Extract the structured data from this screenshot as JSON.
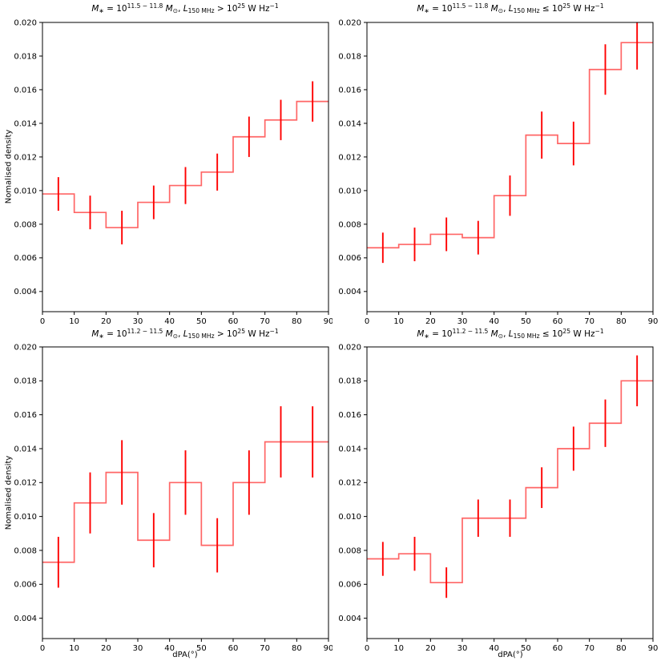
{
  "figure": {
    "background": "#ffffff",
    "step_color": "#ff6666",
    "errorbar_color": "#ff0000",
    "spine_color": "#000000",
    "tick_label_color": "#000000"
  },
  "axes_common": {
    "xlabel": "dPA(°)",
    "ylabel": "Nomalised density",
    "xlim": [
      0,
      90
    ],
    "ylim": [
      0.0028,
      0.02
    ],
    "x_ticks": [
      0,
      10,
      20,
      30,
      40,
      50,
      60,
      70,
      80,
      90
    ],
    "y_ticks": [
      0.004,
      0.006,
      0.008,
      0.01,
      0.012,
      0.014,
      0.016,
      0.018,
      0.02
    ],
    "y_tick_labels": [
      "0.004",
      "0.006",
      "0.008",
      "0.010",
      "0.012",
      "0.014",
      "0.016",
      "0.018",
      "0.020"
    ],
    "grid": false,
    "legend": "none"
  },
  "chart_data": [
    {
      "id": "top-left",
      "type": "step-histogram-with-errorbars",
      "title_text": "M∗ = 10^(11.5−11.8) M⊙, L_150MHz > 10^25 W Hz^−1",
      "title_segments": [
        {
          "t": "M",
          "s": "i"
        },
        {
          "t": "∗",
          "s": "sub"
        },
        {
          "t": " = 10",
          "s": ""
        },
        {
          "t": "11.5 − 11.8",
          "s": "sup"
        },
        {
          "t": " ",
          "s": ""
        },
        {
          "t": "M",
          "s": "i"
        },
        {
          "t": "⊙",
          "s": "sub"
        },
        {
          "t": ", ",
          "s": ""
        },
        {
          "t": "L",
          "s": "i"
        },
        {
          "t": "150 MHz",
          "s": "sub"
        },
        {
          "t": " > 10",
          "s": ""
        },
        {
          "t": "25",
          "s": "sup"
        },
        {
          "t": " W Hz",
          "s": ""
        },
        {
          "t": "−1",
          "s": "sup"
        }
      ],
      "bin_edges": [
        0,
        10,
        20,
        30,
        40,
        50,
        60,
        70,
        80,
        90
      ],
      "bin_centers": [
        5,
        15,
        25,
        35,
        45,
        55,
        65,
        75,
        85
      ],
      "values": [
        0.0098,
        0.0087,
        0.0078,
        0.0093,
        0.0103,
        0.0111,
        0.0132,
        0.0142,
        0.0153
      ],
      "errors": [
        0.001,
        0.001,
        0.001,
        0.001,
        0.0011,
        0.0011,
        0.0012,
        0.0012,
        0.0012
      ],
      "show_ylabel": true,
      "show_xlabel": false
    },
    {
      "id": "top-right",
      "type": "step-histogram-with-errorbars",
      "title_text": "M∗ = 10^(11.5−11.8) M⊙, L_150MHz ≤ 10^25 W Hz^−1",
      "title_segments": [
        {
          "t": "M",
          "s": "i"
        },
        {
          "t": "∗",
          "s": "sub"
        },
        {
          "t": " = 10",
          "s": ""
        },
        {
          "t": "11.5 − 11.8",
          "s": "sup"
        },
        {
          "t": " ",
          "s": ""
        },
        {
          "t": "M",
          "s": "i"
        },
        {
          "t": "⊙",
          "s": "sub"
        },
        {
          "t": ", ",
          "s": ""
        },
        {
          "t": "L",
          "s": "i"
        },
        {
          "t": "150 MHz",
          "s": "sub"
        },
        {
          "t": " ≤ 10",
          "s": ""
        },
        {
          "t": "25",
          "s": "sup"
        },
        {
          "t": " W Hz",
          "s": ""
        },
        {
          "t": "−1",
          "s": "sup"
        }
      ],
      "bin_edges": [
        0,
        10,
        20,
        30,
        40,
        50,
        60,
        70,
        80,
        90
      ],
      "bin_centers": [
        5,
        15,
        25,
        35,
        45,
        55,
        65,
        75,
        85
      ],
      "values": [
        0.0066,
        0.0068,
        0.0074,
        0.0072,
        0.0097,
        0.0133,
        0.0128,
        0.0172,
        0.0188
      ],
      "errors": [
        0.0009,
        0.001,
        0.001,
        0.001,
        0.0012,
        0.0014,
        0.0013,
        0.0015,
        0.0016
      ],
      "show_ylabel": false,
      "show_xlabel": false
    },
    {
      "id": "bottom-left",
      "type": "step-histogram-with-errorbars",
      "title_text": "M∗ = 10^(11.2−11.5) M⊙, L_150MHz > 10^25 W Hz^−1",
      "title_segments": [
        {
          "t": "M",
          "s": "i"
        },
        {
          "t": "∗",
          "s": "sub"
        },
        {
          "t": " = 10",
          "s": ""
        },
        {
          "t": "11.2 − 11.5",
          "s": "sup"
        },
        {
          "t": " ",
          "s": ""
        },
        {
          "t": "M",
          "s": "i"
        },
        {
          "t": "⊙",
          "s": "sub"
        },
        {
          "t": ", ",
          "s": ""
        },
        {
          "t": "L",
          "s": "i"
        },
        {
          "t": "150 MHz",
          "s": "sub"
        },
        {
          "t": " > 10",
          "s": ""
        },
        {
          "t": "25",
          "s": "sup"
        },
        {
          "t": " W Hz",
          "s": ""
        },
        {
          "t": "−1",
          "s": "sup"
        }
      ],
      "bin_edges": [
        0,
        10,
        20,
        30,
        40,
        50,
        60,
        70,
        80,
        90
      ],
      "bin_centers": [
        5,
        15,
        25,
        35,
        45,
        55,
        65,
        75,
        85
      ],
      "values": [
        0.0073,
        0.0108,
        0.0126,
        0.0086,
        0.012,
        0.0083,
        0.012,
        0.0144,
        0.0144
      ],
      "errors": [
        0.0015,
        0.0018,
        0.0019,
        0.0016,
        0.0019,
        0.0016,
        0.0019,
        0.0021,
        0.0021
      ],
      "show_ylabel": true,
      "show_xlabel": true
    },
    {
      "id": "bottom-right",
      "type": "step-histogram-with-errorbars",
      "title_text": "M∗ = 10^(11.2−11.5) M⊙, L_150MHz ≤ 10^25 W Hz^−1",
      "title_segments": [
        {
          "t": "M",
          "s": "i"
        },
        {
          "t": "∗",
          "s": "sub"
        },
        {
          "t": " = 10",
          "s": ""
        },
        {
          "t": "11.2 − 11.5",
          "s": "sup"
        },
        {
          "t": " ",
          "s": ""
        },
        {
          "t": "M",
          "s": "i"
        },
        {
          "t": "⊙",
          "s": "sub"
        },
        {
          "t": ", ",
          "s": ""
        },
        {
          "t": "L",
          "s": "i"
        },
        {
          "t": "150 MHz",
          "s": "sub"
        },
        {
          "t": " ≤ 10",
          "s": ""
        },
        {
          "t": "25",
          "s": "sup"
        },
        {
          "t": " W Hz",
          "s": ""
        },
        {
          "t": "−1",
          "s": "sup"
        }
      ],
      "bin_edges": [
        0,
        10,
        20,
        30,
        40,
        50,
        60,
        70,
        80,
        90
      ],
      "bin_centers": [
        5,
        15,
        25,
        35,
        45,
        55,
        65,
        75,
        85
      ],
      "values": [
        0.0075,
        0.0078,
        0.0061,
        0.0099,
        0.0099,
        0.0117,
        0.014,
        0.0155,
        0.018
      ],
      "errors": [
        0.001,
        0.001,
        0.0009,
        0.0011,
        0.0011,
        0.0012,
        0.0013,
        0.0014,
        0.0015
      ],
      "show_ylabel": false,
      "show_xlabel": true
    }
  ]
}
